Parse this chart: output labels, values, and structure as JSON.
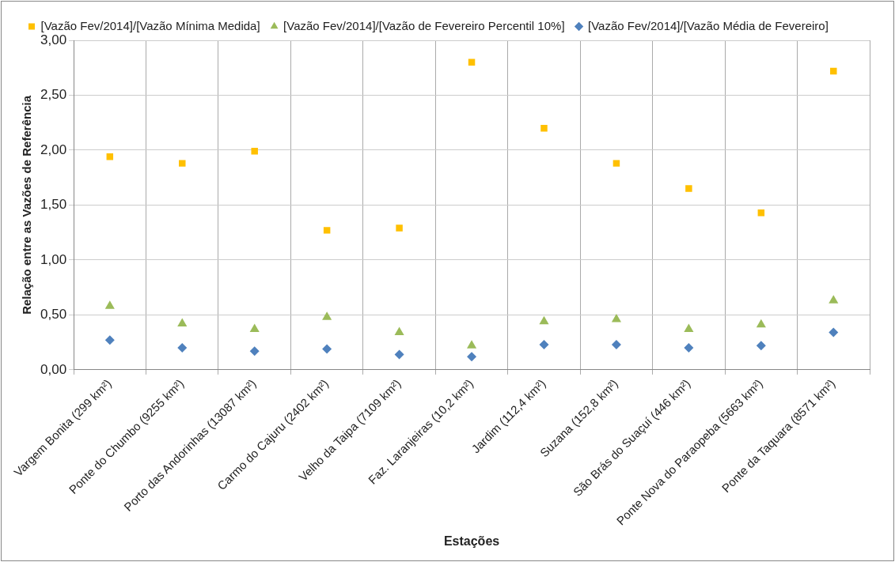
{
  "chart_data": {
    "type": "scatter",
    "xlabel": "Estações",
    "ylabel": "Relação entre as Vazões de Referência",
    "categories": [
      "Vargem Bonita (299 km²)",
      "Ponte do Chumbo (9255 km²)",
      "Porto das Andorinhas (13087 km²)",
      "Carmo do Cajuru (2402 km²)",
      "Velho da Taipa (7109 km²)",
      "Faz. Laranjeiras (10,2 km²)",
      "Jardim (112,4 km²)",
      "Suzana (152,8 km²)",
      "São Brás do Suaçuí (446 km²)",
      "Ponte Nova do Paraopeba (5663 km²)",
      "Ponte da Taquara (8571 km²)"
    ],
    "series": [
      {
        "name": "[Vazão Fev/2014]/[Vazão Mínima Medida]",
        "color": "#ffc000",
        "marker": "square",
        "values": [
          1.94,
          1.88,
          1.99,
          1.27,
          1.29,
          2.8,
          2.2,
          1.88,
          1.65,
          1.43,
          2.72
        ]
      },
      {
        "name": "[Vazão Fev/2014]/[Vazão de Fevereiro Percentil 10%]",
        "color": "#9bbb59",
        "marker": "triangle",
        "values": [
          0.58,
          0.42,
          0.37,
          0.48,
          0.34,
          0.22,
          0.44,
          0.46,
          0.37,
          0.41,
          0.63
        ]
      },
      {
        "name": "[Vazão Fev/2014]/[Vazão Média de Fevereiro]",
        "color": "#4f81bd",
        "marker": "diamond",
        "values": [
          0.27,
          0.2,
          0.17,
          0.19,
          0.14,
          0.12,
          0.23,
          0.23,
          0.2,
          0.22,
          0.34
        ]
      }
    ],
    "ylim": [
      0,
      3
    ],
    "yticks": [
      {
        "value": 0,
        "label": "0,00"
      },
      {
        "value": 0.5,
        "label": "0,50"
      },
      {
        "value": 1,
        "label": "1,00"
      },
      {
        "value": 1.5,
        "label": "1,50"
      },
      {
        "value": 2,
        "label": "2,00"
      },
      {
        "value": 2.5,
        "label": "2,50"
      },
      {
        "value": 3,
        "label": "3,00"
      }
    ],
    "grid": true,
    "legend": "top"
  }
}
